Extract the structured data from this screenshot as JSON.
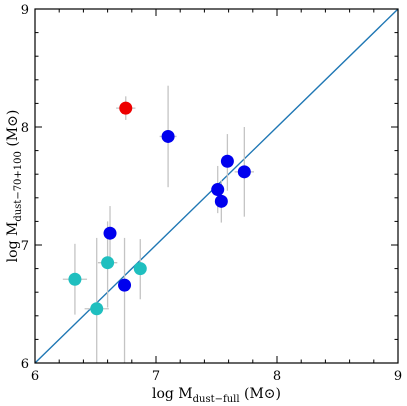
{
  "chart_data": {
    "type": "scatter",
    "title": "",
    "xlabel": {
      "main": "log M",
      "sub": "dust−full",
      "unit": " (M⊙)"
    },
    "ylabel": {
      "main": "log M",
      "sub": "dust−70+100",
      "unit": " (M⊙)"
    },
    "xlim": [
      6,
      9
    ],
    "ylim": [
      6,
      9
    ],
    "xticks": [
      6,
      7,
      8,
      9
    ],
    "yticks": [
      6,
      7,
      8,
      9
    ],
    "x_tick_labels": [
      "6",
      "7",
      "8",
      "9"
    ],
    "y_tick_labels": [
      "6",
      "7",
      "8",
      "9"
    ],
    "minor_tick_step": 0.2,
    "grid": false,
    "legend": "none",
    "reference_line": {
      "type": "one-to-one",
      "from": [
        6,
        6
      ],
      "to": [
        9,
        9
      ],
      "color": "#1f77b4"
    },
    "colors": {
      "blue": "#0000ee",
      "cyan": "#1fbfbf",
      "red": "#ee0000",
      "errorbar": "#c4c4c4"
    },
    "series": [
      {
        "color": "blue",
        "points": [
          {
            "x": 7.1,
            "y": 7.92,
            "xerr": 0.07,
            "yerr_lo": 0.43,
            "yerr_hi": 0.43
          },
          {
            "x": 7.59,
            "y": 7.71,
            "xerr": 0.05,
            "yerr_lo": 0.25,
            "yerr_hi": 0.23
          },
          {
            "x": 7.73,
            "y": 7.62,
            "xerr": 0.08,
            "yerr_lo": 0.38,
            "yerr_hi": 0.38
          },
          {
            "x": 7.51,
            "y": 7.47,
            "xerr": 0.04,
            "yerr_lo": 0.2,
            "yerr_hi": 0.2
          },
          {
            "x": 7.54,
            "y": 7.37,
            "xerr": 0.04,
            "yerr_lo": 0.18,
            "yerr_hi": 0.18
          },
          {
            "x": 6.62,
            "y": 7.1,
            "xerr": 0.04,
            "yerr_lo": 0.22,
            "yerr_hi": 0.23
          },
          {
            "x": 6.74,
            "y": 6.66,
            "xerr": 0.05,
            "yerr_lo": 0.66,
            "yerr_hi": 0.4
          }
        ]
      },
      {
        "color": "cyan",
        "points": [
          {
            "x": 6.33,
            "y": 6.71,
            "xerr": 0.1,
            "yerr_lo": 0.3,
            "yerr_hi": 0.3
          },
          {
            "x": 6.6,
            "y": 6.85,
            "xerr": 0.08,
            "yerr_lo": 0.38,
            "yerr_hi": 0.35
          },
          {
            "x": 6.87,
            "y": 6.8,
            "xerr": 0.05,
            "yerr_lo": 0.26,
            "yerr_hi": 0.25
          },
          {
            "x": 6.51,
            "y": 6.46,
            "xerr": 0.1,
            "yerr_lo": 0.46,
            "yerr_hi": 0.6
          }
        ]
      },
      {
        "color": "red",
        "points": [
          {
            "x": 6.75,
            "y": 8.16,
            "xerr": 0.08,
            "yerr_lo": 0.1,
            "yerr_hi": 0.1
          }
        ]
      }
    ]
  }
}
